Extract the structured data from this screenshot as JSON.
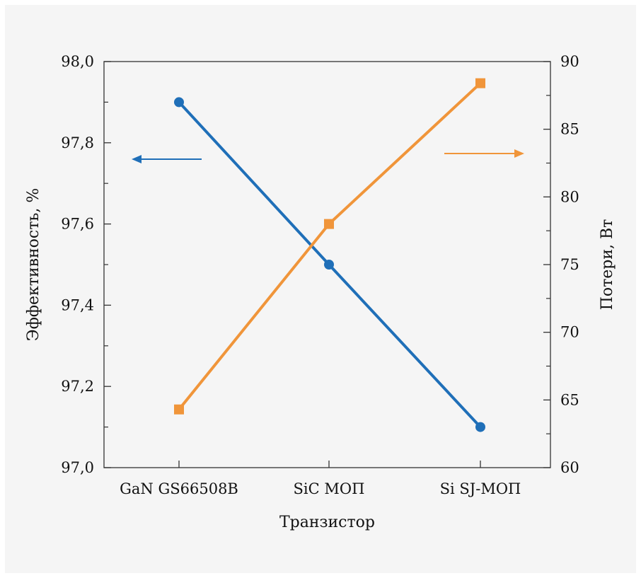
{
  "chart_data": {
    "type": "line",
    "categories": [
      "GaN GS66508B",
      "SiC МОП",
      "Si SJ-МОП"
    ],
    "xlabel": "Транзистор",
    "ylabel_left": "Эффективность, %",
    "ylabel_right": "Потери, Вт",
    "ylim_left": [
      97.0,
      98.0
    ],
    "ylim_right": [
      60,
      90
    ],
    "left_ticks": [
      "97,0",
      "97,2",
      "97,4",
      "97,6",
      "97,8",
      "98,0"
    ],
    "left_tick_values": [
      97.0,
      97.2,
      97.4,
      97.6,
      97.8,
      98.0
    ],
    "right_ticks": [
      "60",
      "65",
      "70",
      "75",
      "80",
      "85",
      "90"
    ],
    "right_tick_values": [
      60,
      65,
      70,
      75,
      80,
      85,
      90
    ],
    "series": [
      {
        "axis": "left",
        "values": [
          97.9,
          97.5,
          97.1
        ],
        "color": "#1f6fb8",
        "marker": "circle",
        "arrow": "left"
      },
      {
        "axis": "right",
        "values": [
          64.3,
          78.0,
          88.4
        ],
        "color": "#f0953a",
        "marker": "square",
        "arrow": "right"
      }
    ],
    "grid": false
  }
}
